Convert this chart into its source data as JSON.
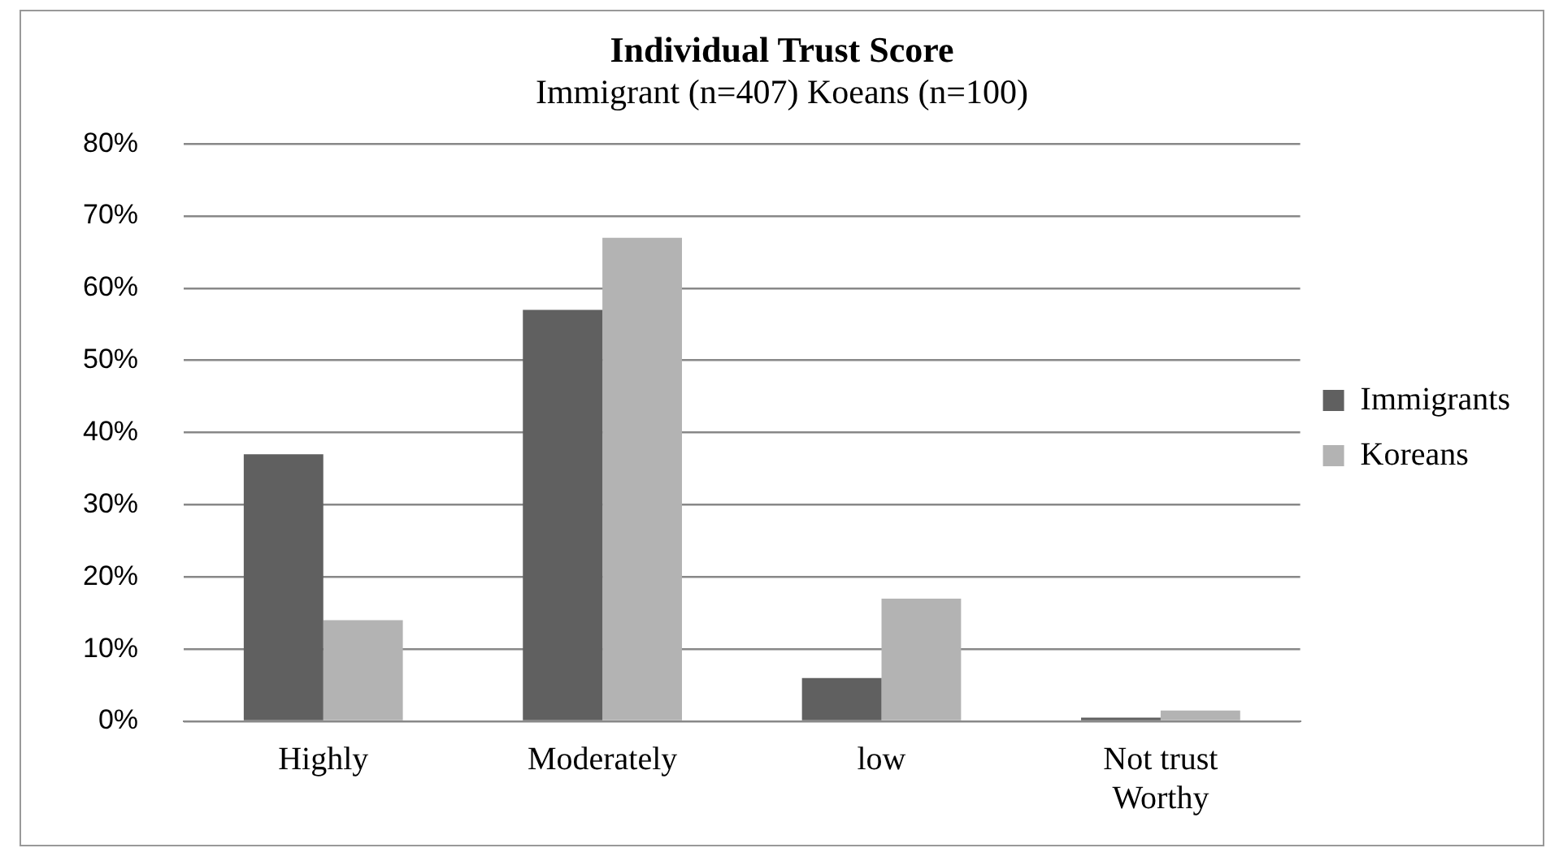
{
  "chart_data": {
    "type": "bar",
    "title": "Individual Trust Score",
    "subtitle": "Immigrant (n=407) Koeans (n=100)",
    "categories": [
      "Highly",
      "Moderately",
      "low",
      "Not trust Worthy"
    ],
    "series": [
      {
        "name": "Immigrants",
        "color": "#606060",
        "values": [
          37,
          57,
          6,
          0.5
        ]
      },
      {
        "name": "Koreans",
        "color": "#b3b3b3",
        "values": [
          14,
          67,
          17,
          1.5
        ]
      }
    ],
    "ylim": [
      0,
      80
    ],
    "yticks": [
      {
        "value": 0,
        "label": "0%"
      },
      {
        "value": 10,
        "label": "10%"
      },
      {
        "value": 20,
        "label": "20%"
      },
      {
        "value": 30,
        "label": "30%"
      },
      {
        "value": 40,
        "label": "40%"
      },
      {
        "value": 50,
        "label": "50%"
      },
      {
        "value": 60,
        "label": "60%"
      },
      {
        "value": 70,
        "label": "70%"
      },
      {
        "value": 80,
        "label": "80%"
      }
    ],
    "grid": "y",
    "legend": "right"
  }
}
